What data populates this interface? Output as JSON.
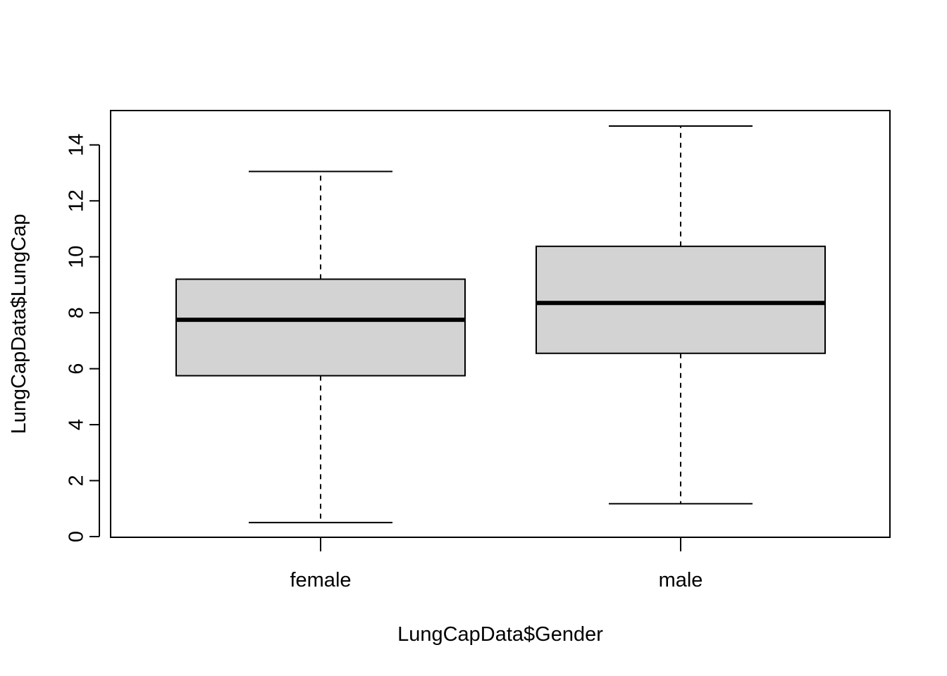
{
  "chart_data": {
    "type": "box",
    "title": "",
    "xlabel": "LungCapData$Gender",
    "ylabel": "LungCapData$LungCap",
    "categories": [
      "female",
      "male"
    ],
    "ylim": [
      0,
      15.3
    ],
    "yticks": [
      0,
      2,
      4,
      6,
      8,
      10,
      12,
      14
    ],
    "ytick_labels": [
      "0",
      "2",
      "4",
      "6",
      "8",
      "10",
      "12",
      "14"
    ],
    "grid": false,
    "legend": "none",
    "box_fill": "#d3d3d3",
    "series": [
      {
        "category": "female",
        "min": 0.5,
        "q1": 5.75,
        "median": 7.75,
        "q3": 9.2,
        "max": 13.05
      },
      {
        "category": "male",
        "min": 1.175,
        "q1": 6.55,
        "median": 8.35,
        "q3": 10.375,
        "max": 14.675
      }
    ]
  }
}
